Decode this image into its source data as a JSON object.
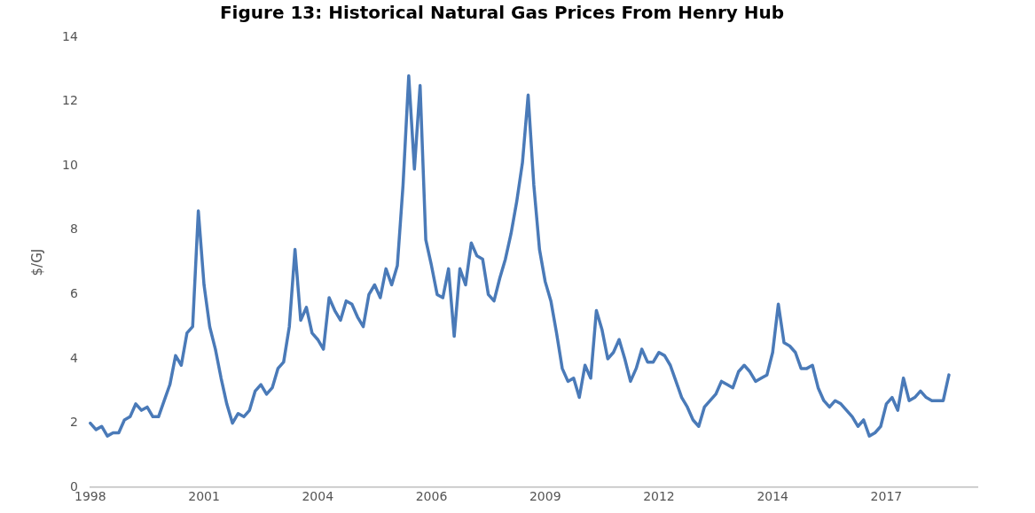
{
  "chart_data": {
    "type": "line",
    "title": "Figure 13: Historical Natural Gas Prices From Henry Hub",
    "ylabel": "$/GJ",
    "categories": [
      "1998",
      null,
      null,
      null,
      null,
      null,
      null,
      null,
      null,
      null,
      null,
      null,
      null,
      null,
      null,
      null,
      null,
      null,
      null,
      null,
      "2001",
      null,
      null,
      null,
      null,
      null,
      null,
      null,
      null,
      null,
      null,
      null,
      null,
      null,
      null,
      null,
      null,
      null,
      null,
      null,
      "2004",
      null,
      null,
      null,
      null,
      null,
      null,
      null,
      null,
      null,
      null,
      null,
      null,
      null,
      null,
      null,
      null,
      null,
      null,
      null,
      "2006",
      null,
      null,
      null,
      null,
      null,
      null,
      null,
      null,
      null,
      null,
      null,
      null,
      null,
      null,
      null,
      null,
      null,
      null,
      null,
      "2009",
      null,
      null,
      null,
      null,
      null,
      null,
      null,
      null,
      null,
      null,
      null,
      null,
      null,
      null,
      null,
      null,
      null,
      null,
      null,
      "2012",
      null,
      null,
      null,
      null,
      null,
      null,
      null,
      null,
      null,
      null,
      null,
      null,
      null,
      null,
      null,
      null,
      null,
      null,
      null,
      "2014",
      null,
      null,
      null,
      null,
      null,
      null,
      null,
      null,
      null,
      null,
      null,
      null,
      null,
      null,
      null,
      null,
      null,
      null,
      null,
      "2017",
      null,
      null,
      null,
      null,
      null,
      null,
      null,
      null,
      null,
      null,
      null,
      null,
      null,
      null,
      null,
      null
    ],
    "ylim": [
      0,
      14
    ],
    "yticks": [
      0,
      2,
      4,
      6,
      8,
      10,
      12,
      14
    ],
    "grid": false,
    "legend": false,
    "marker": "none",
    "line_style": "solid",
    "series": [
      {
        "color": "#4a7ab8",
        "values": [
          2.0,
          1.8,
          1.9,
          1.6,
          1.7,
          1.7,
          2.1,
          2.2,
          2.6,
          2.4,
          2.5,
          2.2,
          2.2,
          2.7,
          3.2,
          4.1,
          3.8,
          4.8,
          5.0,
          8.6,
          6.3,
          5.0,
          4.3,
          3.4,
          2.6,
          2.0,
          2.3,
          2.2,
          2.4,
          3.0,
          3.2,
          2.9,
          3.1,
          3.7,
          3.9,
          5.0,
          7.4,
          5.2,
          5.6,
          4.8,
          4.6,
          4.3,
          5.9,
          5.5,
          5.2,
          5.8,
          5.7,
          5.3,
          5.0,
          6.0,
          6.3,
          5.9,
          6.8,
          6.3,
          6.9,
          9.4,
          12.8,
          9.9,
          12.5,
          7.7,
          6.9,
          6.0,
          5.9,
          6.8,
          4.7,
          6.8,
          6.3,
          7.6,
          7.2,
          7.1,
          6.0,
          5.8,
          6.5,
          7.1,
          7.9,
          8.9,
          10.1,
          12.2,
          9.4,
          7.4,
          6.4,
          5.8,
          4.8,
          3.7,
          3.3,
          3.4,
          2.8,
          3.8,
          3.4,
          5.5,
          4.9,
          4.0,
          4.2,
          4.6,
          4.0,
          3.3,
          3.7,
          4.3,
          3.9,
          3.9,
          4.2,
          4.1,
          3.8,
          3.3,
          2.8,
          2.5,
          2.1,
          1.9,
          2.5,
          2.7,
          2.9,
          3.3,
          3.2,
          3.1,
          3.6,
          3.8,
          3.6,
          3.3,
          3.4,
          3.5,
          4.2,
          5.7,
          4.5,
          4.4,
          4.2,
          3.7,
          3.7,
          3.8,
          3.1,
          2.7,
          2.5,
          2.7,
          2.6,
          2.4,
          2.2,
          1.9,
          2.1,
          1.6,
          1.7,
          1.9,
          2.6,
          2.8,
          2.4,
          3.4,
          2.7,
          2.8,
          3.0,
          2.8,
          2.7,
          2.7,
          2.7,
          3.5,
          null,
          null,
          null,
          null,
          null
        ]
      }
    ]
  }
}
